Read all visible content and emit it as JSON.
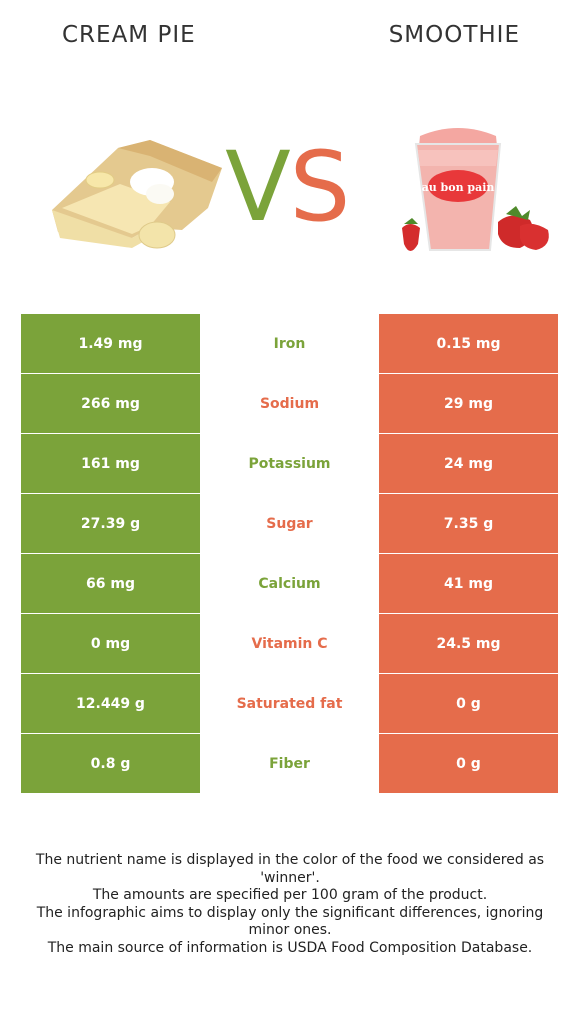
{
  "colors": {
    "left": "#7ba33a",
    "right": "#e56c4b"
  },
  "header": {
    "left_food": "CREAM PIE",
    "right_food": "SMOOTHIE",
    "vs_v": "V",
    "vs_s": "S"
  },
  "cup_brand": "au bon pain",
  "chart_data": {
    "type": "table",
    "columns": [
      "CREAM PIE",
      "",
      "SMOOTHIE"
    ],
    "rows": [
      {
        "nutrient": "Iron",
        "left": "1.49 mg",
        "right": "0.15 mg",
        "winner": "left"
      },
      {
        "nutrient": "Sodium",
        "left": "266 mg",
        "right": "29 mg",
        "winner": "right"
      },
      {
        "nutrient": "Potassium",
        "left": "161 mg",
        "right": "24 mg",
        "winner": "left"
      },
      {
        "nutrient": "Sugar",
        "left": "27.39 g",
        "right": "7.35 g",
        "winner": "right"
      },
      {
        "nutrient": "Calcium",
        "left": "66 mg",
        "right": "41 mg",
        "winner": "left"
      },
      {
        "nutrient": "Vitamin C",
        "left": "0 mg",
        "right": "24.5 mg",
        "winner": "right"
      },
      {
        "nutrient": "Saturated fat",
        "left": "12.449 g",
        "right": "0 g",
        "winner": "right"
      },
      {
        "nutrient": "Fiber",
        "left": "0.8 g",
        "right": "0 g",
        "winner": "left"
      }
    ]
  },
  "footer": {
    "line1": "The nutrient name is displayed in the color of the food we considered as 'winner'.",
    "line2": "The amounts are specified per 100 gram of the product.",
    "line3": "The infographic aims to display only the significant differences, ignoring minor ones.",
    "line4": "The main source of information is USDA Food Composition Database."
  }
}
